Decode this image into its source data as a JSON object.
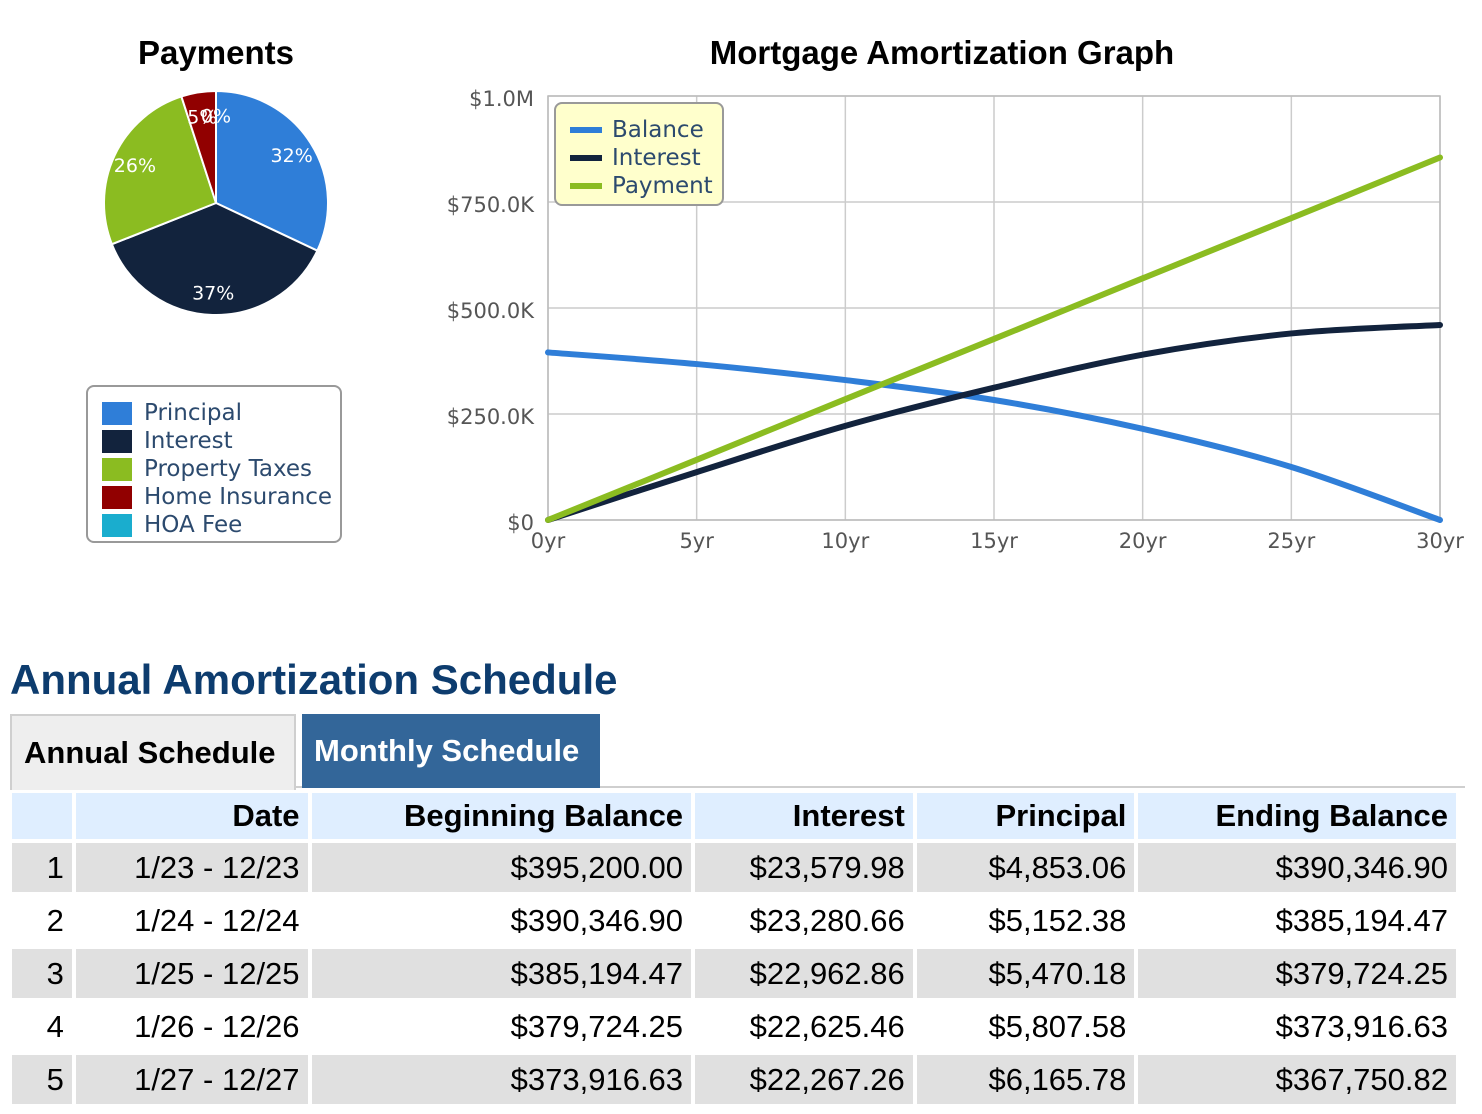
{
  "chart_data": [
    {
      "type": "pie",
      "title": "Payments",
      "slices": [
        {
          "name": "Principal",
          "value": 32,
          "label": "32%",
          "color": "#2f7ed8"
        },
        {
          "name": "Interest",
          "value": 37,
          "label": "37%",
          "color": "#12233d"
        },
        {
          "name": "Property Taxes",
          "value": 26,
          "label": "26%",
          "color": "#8bbc21"
        },
        {
          "name": "Home Insurance",
          "value": 5,
          "label": "5%",
          "color": "#910000"
        },
        {
          "name": "HOA Fee",
          "value": 0,
          "label": "0%",
          "color": "#1aadce"
        }
      ],
      "legend_placement": "below"
    },
    {
      "type": "line",
      "title": "Mortgage Amortization Graph",
      "x_ticks": [
        "0yr",
        "5yr",
        "10yr",
        "15yr",
        "20yr",
        "25yr",
        "30yr"
      ],
      "y_ticks": [
        "$0",
        "$250.0K",
        "$500.0K",
        "$750.0K",
        "$1.0M"
      ],
      "xlim": [
        0,
        30
      ],
      "ylim": [
        0,
        1000000
      ],
      "grid": true,
      "legend_placement": "top-left",
      "series": [
        {
          "name": "Balance",
          "color": "#2f7ed8",
          "x": [
            0,
            5,
            10,
            15,
            20,
            25,
            30
          ],
          "y": [
            395200,
            367750,
            330000,
            283000,
            215000,
            125000,
            0
          ]
        },
        {
          "name": "Interest",
          "color": "#12233d",
          "x": [
            0,
            5,
            10,
            15,
            20,
            25,
            30
          ],
          "y": [
            0,
            113000,
            222000,
            312000,
            390000,
            440000,
            460000
          ]
        },
        {
          "name": "Payment",
          "color": "#8bbc21",
          "x": [
            0,
            5,
            10,
            15,
            20,
            25,
            30
          ],
          "y": [
            0,
            142000,
            285000,
            427000,
            570000,
            712000,
            855000
          ]
        }
      ]
    }
  ],
  "schedule": {
    "title": "Annual Amortization Schedule",
    "tabs": {
      "annual": "Annual Schedule",
      "monthly": "Monthly Schedule"
    },
    "headers": {
      "num": "",
      "date": "Date",
      "beginning": "Beginning Balance",
      "interest": "Interest",
      "principal": "Principal",
      "ending": "Ending Balance"
    },
    "rows": [
      {
        "num": "1",
        "date": "1/23 - 12/23",
        "beginning": "$395,200.00",
        "interest": "$23,579.98",
        "principal": "$4,853.06",
        "ending": "$390,346.90"
      },
      {
        "num": "2",
        "date": "1/24 - 12/24",
        "beginning": "$390,346.90",
        "interest": "$23,280.66",
        "principal": "$5,152.38",
        "ending": "$385,194.47"
      },
      {
        "num": "3",
        "date": "1/25 - 12/25",
        "beginning": "$385,194.47",
        "interest": "$22,962.86",
        "principal": "$5,470.18",
        "ending": "$379,724.25"
      },
      {
        "num": "4",
        "date": "1/26 - 12/26",
        "beginning": "$379,724.25",
        "interest": "$22,625.46",
        "principal": "$5,807.58",
        "ending": "$373,916.63"
      },
      {
        "num": "5",
        "date": "1/27 - 12/27",
        "beginning": "$373,916.63",
        "interest": "$22,267.26",
        "principal": "$6,165.78",
        "ending": "$367,750.82"
      }
    ]
  }
}
